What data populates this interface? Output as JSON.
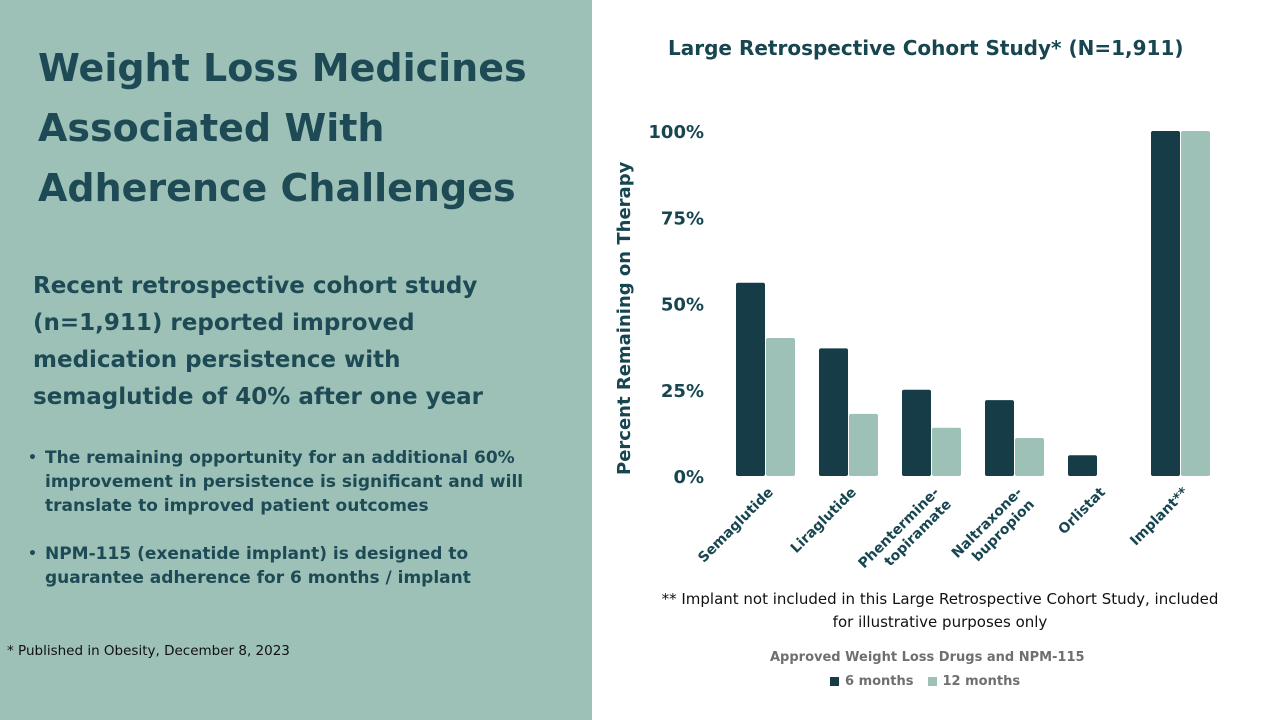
{
  "left": {
    "headline_lines": [
      "Weight Loss Medicines",
      "Associated With",
      "Adherence Challenges"
    ],
    "lead_lines": [
      "Recent retrospective cohort study",
      "(n=1,911) reported improved",
      "medication persistence with",
      "semaglutide of 40% after one year"
    ],
    "bullets": [
      {
        "lines": [
          "The remaining opportunity for an additional 60%",
          "improvement in persistence is significant and will",
          "translate to improved patient outcomes"
        ]
      },
      {
        "lines": [
          "NPM-115 (exenatide implant) is designed to",
          "guarantee adherence for 6 months / implant"
        ]
      }
    ],
    "footnote": "* Published in Obesity, December 8, 2023"
  },
  "colors": {
    "panel": "#9dc1b6",
    "text_dark": "#1d4a55",
    "series_6mo": "#163d47",
    "series_12mo": "#9dc1b6"
  },
  "chart_data": {
    "type": "bar",
    "title": "Large Retrospective Cohort Study* (N=1,911)",
    "ylabel": "Percent Remaining on Therapy",
    "xlabel": "Approved Weight Loss Drugs and NPM-115",
    "ylim": [
      0,
      100
    ],
    "yticks": [
      "100%",
      "75%",
      "50%",
      "25%",
      "0%"
    ],
    "ytick_values": [
      100,
      75,
      50,
      25,
      0
    ],
    "categories": [
      [
        "Semaglutide"
      ],
      [
        "Liraglutide"
      ],
      [
        "Phentermine-",
        "topiramate"
      ],
      [
        "Naltraxone-",
        "bupropion"
      ],
      [
        "Orlistat"
      ],
      [
        "Implant**"
      ]
    ],
    "series": [
      {
        "name": "6 months",
        "values": [
          56,
          37,
          25,
          22,
          6,
          100
        ]
      },
      {
        "name": "12 months",
        "values": [
          40,
          18,
          14,
          11,
          null,
          100
        ]
      }
    ],
    "legend_position": "bottom",
    "grid": false,
    "note_lines": [
      "** Implant not included in this Large Retrospective Cohort Study, included",
      "for illustrative purposes only"
    ]
  }
}
